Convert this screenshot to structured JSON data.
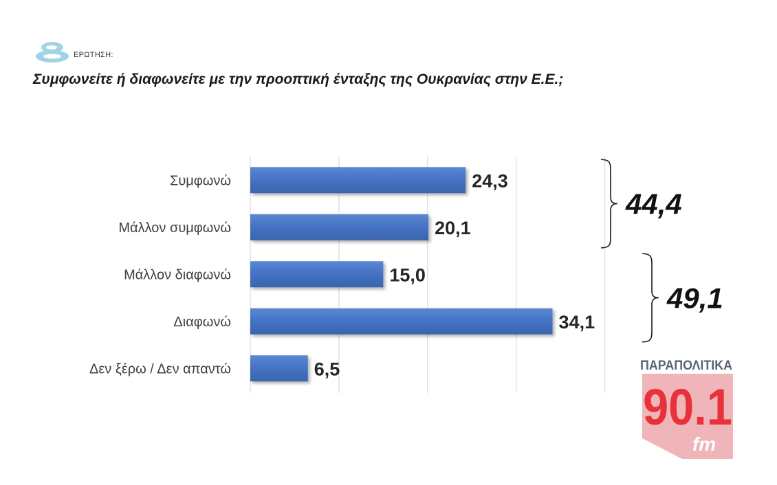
{
  "header": {
    "question_prefix": "ΕΡΩΤΗΣΗ:",
    "question_number_logo": "8",
    "question": "Συμφωνείτε ή διαφωνείτε με την προοπτική ένταξης της Ουκρανίας στην Ε.Ε.;"
  },
  "chart_data": {
    "type": "bar",
    "orientation": "horizontal",
    "title": "Συμφωνείτε ή διαφωνείτε με την προοπτική ένταξης της Ουκρανίας στην Ε.Ε.;",
    "categories": [
      "Συμφωνώ",
      "Μάλλον συμφωνώ",
      "Μάλλον διαφωνώ",
      "Διαφωνώ",
      "Δεν ξέρω / Δεν απαντώ"
    ],
    "values": [
      24.3,
      20.1,
      15.0,
      34.1,
      6.5
    ],
    "value_labels": [
      "24,3",
      "20,1",
      "15,0",
      "34,1",
      "6,5"
    ],
    "xlim": [
      0,
      40
    ],
    "grid": true,
    "bar_color": "#4472c4",
    "group_totals": [
      {
        "label": "44,4",
        "value": 44.4,
        "categories": [
          "Συμφωνώ",
          "Μάλλον συμφωνώ"
        ]
      },
      {
        "label": "49,1",
        "value": 49.1,
        "categories": [
          "Μάλλον διαφωνώ",
          "Διαφωνώ"
        ]
      }
    ]
  },
  "brand": {
    "name": "ΠΑΡΑΠΟΛΙΤΙΚΑ",
    "frequency": "90.1",
    "band": "fm",
    "color": "#e8313a",
    "name_color": "#5a6470"
  }
}
